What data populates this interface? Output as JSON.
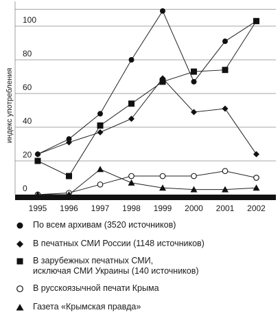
{
  "chart_data": {
    "type": "line",
    "ylabel": "индекс употребления",
    "x": [
      "1995",
      "1996",
      "1997",
      "1998",
      "1999",
      "2000",
      "2001",
      "2002"
    ],
    "yticks": [
      "0",
      "20",
      "40",
      "60",
      "80",
      "100"
    ],
    "ylim": [
      0,
      115
    ],
    "grid": "horizontal",
    "legend_placement": "bottom",
    "series": [
      {
        "name": "По всем архивам (3520 источников)",
        "marker": "filled-circle",
        "values": [
          24,
          33,
          48,
          80,
          109,
          67,
          91,
          103
        ]
      },
      {
        "name": "В печатных СМИ России (1148 источников)",
        "marker": "filled-diamond",
        "values": [
          24,
          31,
          37,
          45,
          69,
          49,
          51,
          24
        ]
      },
      {
        "name": "В зарубежных печатных СМИ,\nисключая СМИ Украины (140 источников)",
        "marker": "filled-square",
        "values": [
          20,
          11,
          41,
          54,
          67,
          73,
          74,
          103
        ]
      },
      {
        "name": "В русскоязычной печати Крыма",
        "marker": "open-circle",
        "values": [
          0,
          1,
          6,
          11,
          11,
          11,
          14,
          10
        ]
      },
      {
        "name": "Газета «Крымская правда»",
        "marker": "filled-triangle",
        "values": [
          0,
          0,
          15,
          7,
          4,
          3,
          3,
          4
        ]
      }
    ]
  }
}
